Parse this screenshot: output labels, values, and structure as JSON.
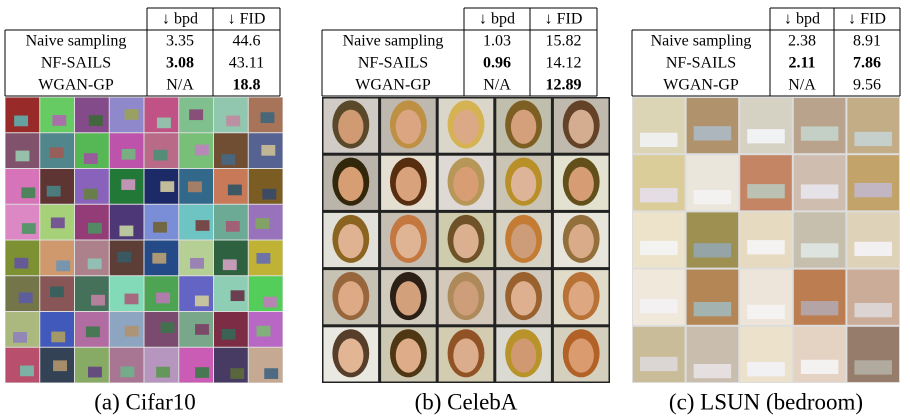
{
  "panels": [
    {
      "caption": "(a) Cifar10",
      "table": {
        "header": [
          "↓ bpd",
          "↓ FID"
        ],
        "rows": [
          [
            "Naive sampling",
            "3.35",
            "44.6"
          ],
          [
            "NF-SAILS",
            "3.08",
            "43.11"
          ],
          [
            "WGAN-GP",
            "N/A",
            "18.8"
          ]
        ]
      }
    },
    {
      "caption": "(b) CelebA",
      "table": {
        "header": [
          "↓ bpd",
          "↓ FID"
        ],
        "rows": [
          [
            "Naive sampling",
            "1.03",
            "15.82"
          ],
          [
            "NF-SAILS",
            "0.96",
            "14.12"
          ],
          [
            "WGAN-GP",
            "N/A",
            "12.89"
          ]
        ]
      }
    },
    {
      "caption": "(c) LSUN (bedroom)",
      "table": {
        "header": [
          "↓ bpd",
          "↓ FID"
        ],
        "rows": [
          [
            "Naive sampling",
            "2.38",
            "8.91"
          ],
          [
            "NF-SAILS",
            "2.11",
            "7.86"
          ],
          [
            "WGAN-GP",
            "N/A",
            "9.56"
          ]
        ]
      }
    }
  ]
}
